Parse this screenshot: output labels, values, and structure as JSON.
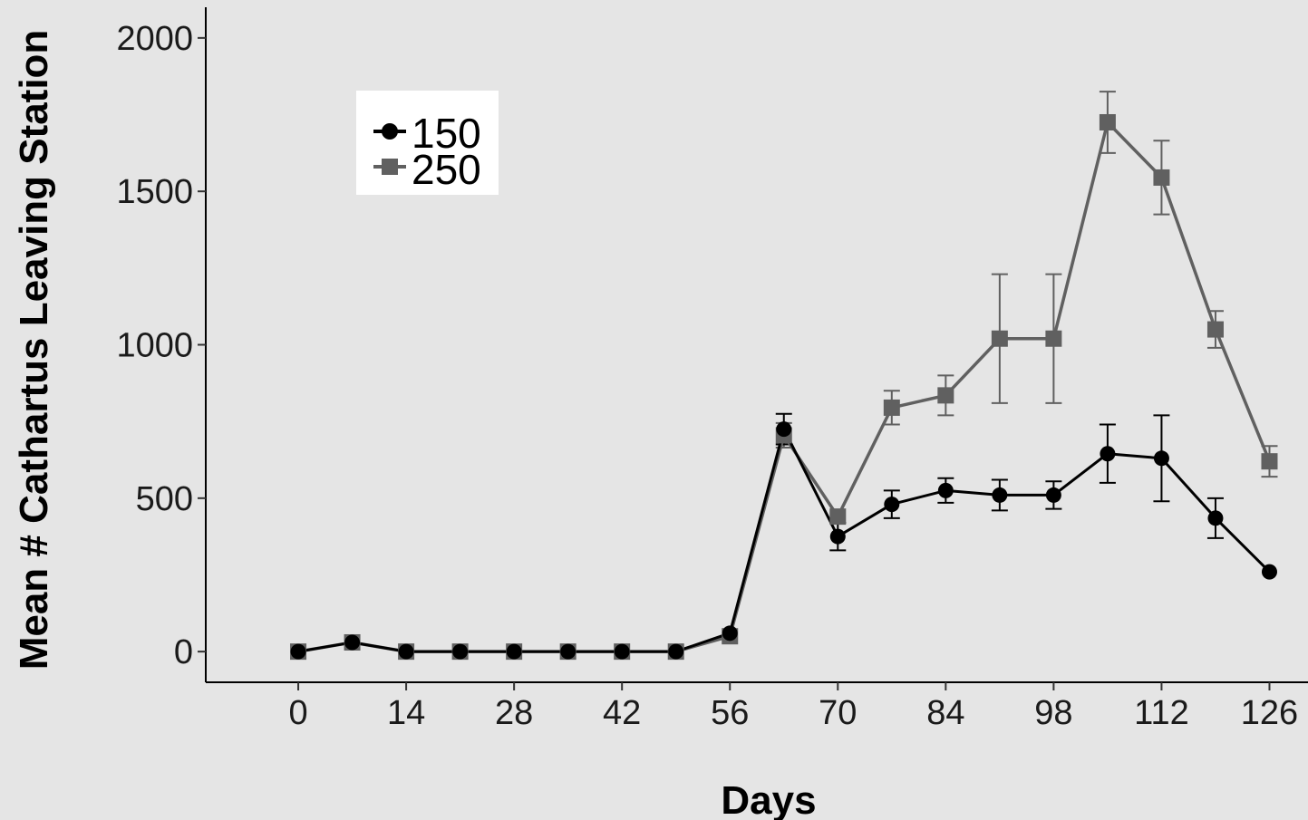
{
  "chart_data": {
    "type": "line",
    "title": "",
    "xlabel": "Days",
    "ylabel": "Mean # Cathartus Leaving Station",
    "xlim": [
      -12,
      131
    ],
    "ylim": [
      -100,
      2100
    ],
    "xticks": [
      0,
      14,
      28,
      42,
      56,
      70,
      84,
      98,
      112,
      126
    ],
    "yticks": [
      0,
      500,
      1000,
      1500,
      2000
    ],
    "grid": false,
    "legend_position": "top-left",
    "x": [
      0,
      7,
      14,
      21,
      28,
      35,
      42,
      49,
      56,
      63,
      70,
      77,
      84,
      91,
      98,
      105,
      112,
      119,
      126
    ],
    "series": [
      {
        "name": "150",
        "color": "#000000",
        "marker": "circle",
        "values": [
          0,
          30,
          0,
          0,
          0,
          0,
          0,
          0,
          60,
          725,
          375,
          480,
          525,
          510,
          510,
          645,
          630,
          435,
          260
        ],
        "errors": [
          0,
          0,
          0,
          0,
          0,
          0,
          0,
          0,
          0,
          50,
          45,
          45,
          40,
          50,
          45,
          95,
          140,
          65,
          0
        ]
      },
      {
        "name": "250",
        "color": "#606060",
        "marker": "square",
        "values": [
          0,
          30,
          0,
          0,
          0,
          0,
          0,
          0,
          50,
          705,
          440,
          795,
          835,
          1020,
          1020,
          1725,
          1545,
          1050,
          620
        ],
        "errors": [
          0,
          0,
          0,
          0,
          0,
          0,
          0,
          0,
          0,
          40,
          0,
          55,
          65,
          210,
          210,
          100,
          120,
          60,
          50
        ]
      }
    ]
  }
}
